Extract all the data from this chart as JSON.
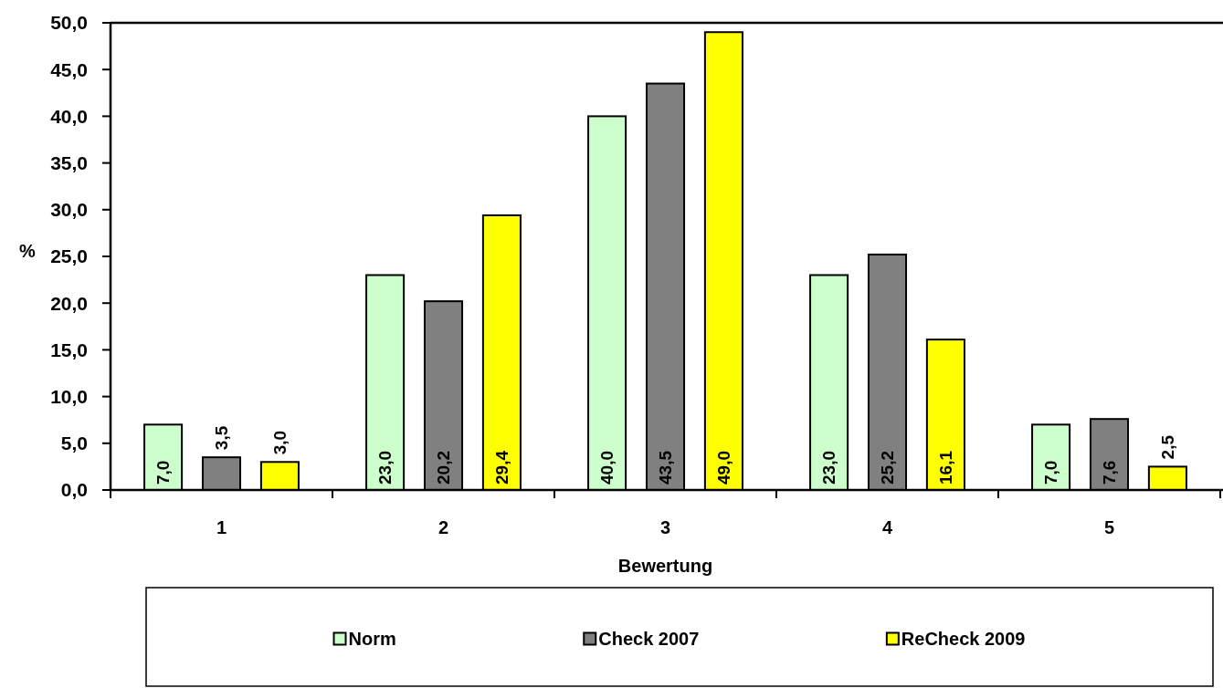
{
  "chart_data": {
    "type": "bar",
    "categories": [
      "1",
      "2",
      "3",
      "4",
      "5"
    ],
    "xlabel": "Bewertung",
    "ylabel": "%",
    "ylim": [
      0,
      50
    ],
    "yticks": [
      {
        "value": 0,
        "label": "0,0"
      },
      {
        "value": 5,
        "label": "5,0"
      },
      {
        "value": 10,
        "label": "10,0"
      },
      {
        "value": 15,
        "label": "15,0"
      },
      {
        "value": 20,
        "label": "20,0"
      },
      {
        "value": 25,
        "label": "25,0"
      },
      {
        "value": 30,
        "label": "30,0"
      },
      {
        "value": 35,
        "label": "35,0"
      },
      {
        "value": 40,
        "label": "40,0"
      },
      {
        "value": 45,
        "label": "45,0"
      },
      {
        "value": 50,
        "label": "50,0"
      }
    ],
    "legend": "bottom",
    "series": [
      {
        "name": "Norm",
        "color": "#ccffcc",
        "values": [
          7.0,
          23.0,
          40.0,
          23.0,
          7.0
        ],
        "value_labels": [
          "7,0",
          "23,0",
          "40,0",
          "23,0",
          "7,0"
        ]
      },
      {
        "name": "Check 2007",
        "color": "#808080",
        "values": [
          3.5,
          20.2,
          43.5,
          25.2,
          7.6
        ],
        "value_labels": [
          "3,5",
          "20,2",
          "43,5",
          "25,2",
          "7,6"
        ]
      },
      {
        "name": "ReCheck 2009",
        "color": "#ffff00",
        "values": [
          3.0,
          29.4,
          49.0,
          16.1,
          2.5
        ],
        "value_labels": [
          "3,0",
          "29,4",
          "49,0",
          "16,1",
          "2,5"
        ]
      }
    ]
  }
}
